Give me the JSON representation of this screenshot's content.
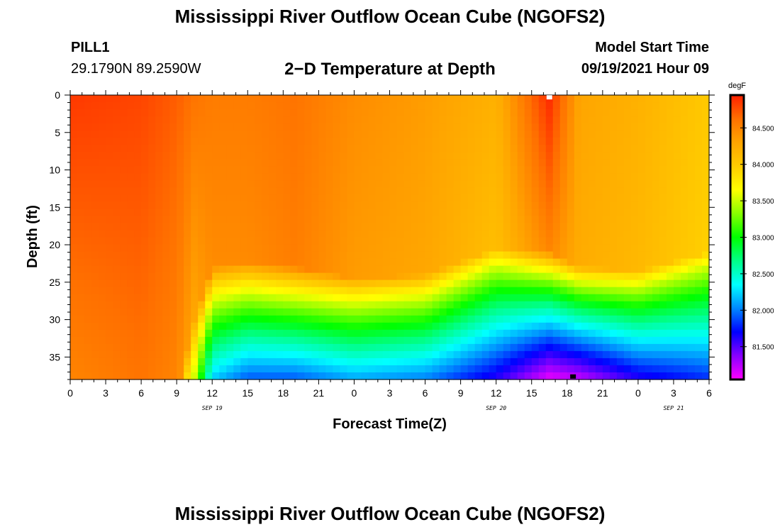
{
  "page": {
    "title": "Mississippi River Outflow Ocean Cube (NGOFS2)",
    "footer_title": "Mississippi River Outflow Ocean Cube (NGOFS2)",
    "station_name": "PILL1",
    "station_coords": "29.1790N  89.2590W",
    "subtitle": "2−D Temperature at Depth",
    "model_start_label": "Model Start Time",
    "model_start_value": "09/19/2021 Hour 09"
  },
  "chart_data": {
    "type": "heatmap",
    "title": "2−D Temperature at Depth",
    "xlabel": "Forecast Time(Z)",
    "ylabel": "Depth (ft)",
    "x_tick_labels": [
      "0",
      "3",
      "6",
      "9",
      "12",
      "15",
      "18",
      "21",
      "0",
      "3",
      "6",
      "9",
      "12",
      "15",
      "18",
      "21",
      "0",
      "3",
      "6"
    ],
    "x_range_hours": [
      0,
      54
    ],
    "y_ticks": [
      0,
      5,
      10,
      15,
      20,
      25,
      30,
      35
    ],
    "y_range": [
      0,
      38
    ],
    "y_inverted": true,
    "date_labels": [
      {
        "text": "SEP 19",
        "hour": 12
      },
      {
        "text": "SEP 20",
        "hour": 36
      },
      {
        "text": "SEP 21",
        "hour": 51
      }
    ],
    "colorbar": {
      "unit": "degF",
      "ticks": [
        "84.500",
        "84.000",
        "83.500",
        "83.000",
        "82.500",
        "82.000",
        "81.500"
      ],
      "tick_values": [
        84.5,
        84.0,
        83.5,
        83.0,
        82.5,
        82.0,
        81.5
      ],
      "range": [
        81.05,
        84.95
      ],
      "colors": [
        "#ff00ff",
        "#8800ff",
        "#0000ff",
        "#0088ff",
        "#00ffff",
        "#00ff88",
        "#00ff00",
        "#88ff00",
        "#ffff00",
        "#ffcc00",
        "#ffa500",
        "#ff7000",
        "#ff2000"
      ]
    },
    "extremes": {
      "max": {
        "hour": 40.5,
        "depth": 0.3,
        "color": "#ffffff"
      },
      "min": {
        "hour": 42.5,
        "depth": 37.6,
        "color": "#000000"
      }
    },
    "time_profiles": [
      {
        "hour": 0,
        "top_temp": 84.85,
        "bottom_temp": 84.5,
        "thermocline_depth": 45,
        "bottom_min": 84.5
      },
      {
        "hour": 6,
        "top_temp": 84.8,
        "bottom_temp": 84.6,
        "thermocline_depth": 45,
        "bottom_min": 84.6
      },
      {
        "hour": 9,
        "top_temp": 84.7,
        "bottom_temp": 84.5,
        "thermocline_depth": 40,
        "bottom_min": 84.3
      },
      {
        "hour": 10.5,
        "top_temp": 84.6,
        "bottom_temp": 84.2,
        "thermocline_depth": 30,
        "bottom_min": 83.5
      },
      {
        "hour": 12,
        "top_temp": 84.55,
        "bottom_temp": 84.4,
        "thermocline_depth": 23,
        "bottom_min": 82.2
      },
      {
        "hour": 15,
        "top_temp": 84.55,
        "bottom_temp": 84.4,
        "thermocline_depth": 22.5,
        "bottom_min": 81.9
      },
      {
        "hour": 19,
        "top_temp": 84.6,
        "bottom_temp": 84.5,
        "thermocline_depth": 23,
        "bottom_min": 81.9
      },
      {
        "hour": 24,
        "top_temp": 84.45,
        "bottom_temp": 84.3,
        "thermocline_depth": 24.5,
        "bottom_min": 82.1
      },
      {
        "hour": 30,
        "top_temp": 84.35,
        "bottom_temp": 84.25,
        "thermocline_depth": 24,
        "bottom_min": 82.0
      },
      {
        "hour": 36,
        "top_temp": 84.2,
        "bottom_temp": 84.0,
        "thermocline_depth": 20.5,
        "bottom_min": 81.6
      },
      {
        "hour": 40.5,
        "top_temp": 84.9,
        "bottom_temp": 84.15,
        "thermocline_depth": 21,
        "bottom_min": 81.1
      },
      {
        "hour": 43,
        "top_temp": 84.3,
        "bottom_temp": 84.2,
        "thermocline_depth": 23,
        "bottom_min": 81.2
      },
      {
        "hour": 48,
        "top_temp": 84.2,
        "bottom_temp": 84.1,
        "thermocline_depth": 23.5,
        "bottom_min": 81.6
      },
      {
        "hour": 54,
        "top_temp": 84.0,
        "bottom_temp": 83.9,
        "thermocline_depth": 21,
        "bottom_min": 81.8
      }
    ]
  }
}
